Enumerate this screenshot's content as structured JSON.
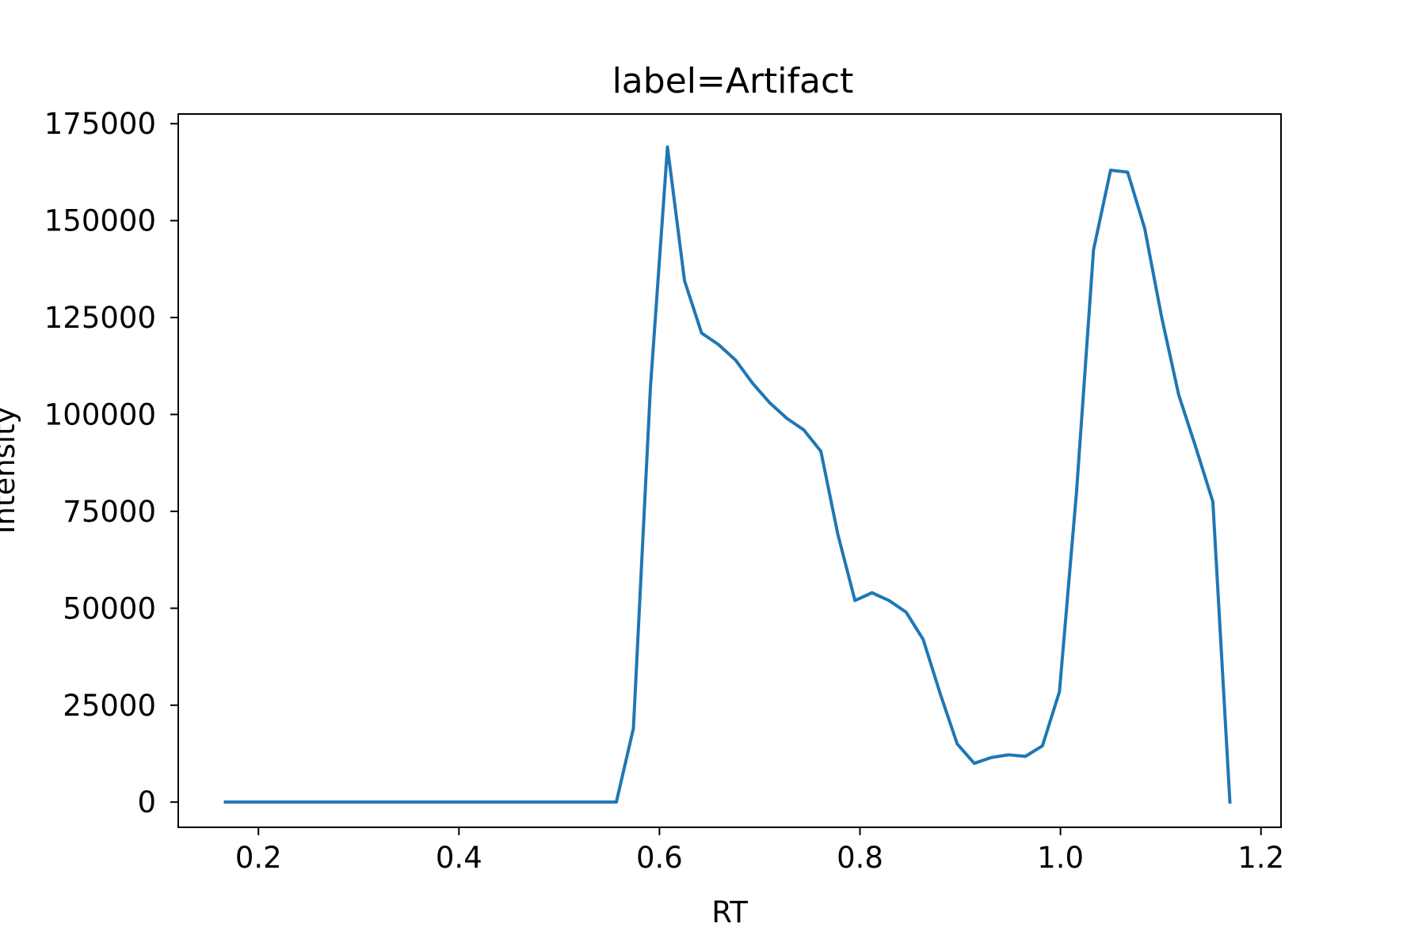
{
  "chart_data": {
    "type": "line",
    "title": "label=Artifact",
    "xlabel": "RT",
    "ylabel": "Intensity",
    "xlim": [
      0.12,
      1.22
    ],
    "ylim": [
      -6500,
      177500
    ],
    "xticks": [
      0.2,
      0.4,
      0.6,
      0.8,
      1.0,
      1.2
    ],
    "xtick_labels": [
      "0.2",
      "0.4",
      "0.6",
      "0.8",
      "1.0",
      "1.2"
    ],
    "yticks": [
      0,
      25000,
      50000,
      75000,
      100000,
      125000,
      150000,
      175000
    ],
    "ytick_labels": [
      "0",
      "25000",
      "50000",
      "75000",
      "100000",
      "125000",
      "150000",
      "175000"
    ],
    "grid": false,
    "line_color": "#1f77b4",
    "series": [
      {
        "x": [
          0.167,
          0.183,
          0.2,
          0.217,
          0.234,
          0.251,
          0.268,
          0.285,
          0.302,
          0.318,
          0.335,
          0.352,
          0.369,
          0.386,
          0.403,
          0.42,
          0.437,
          0.453,
          0.47,
          0.487,
          0.504,
          0.521,
          0.538,
          0.555,
          0.557,
          0.574,
          0.591,
          0.608,
          0.625,
          0.642,
          0.659,
          0.676,
          0.693,
          0.71,
          0.727,
          0.744,
          0.761,
          0.778,
          0.795,
          0.812,
          0.829,
          0.846,
          0.863,
          0.88,
          0.897,
          0.914,
          0.931,
          0.948,
          0.965,
          0.982,
          0.999,
          1.016,
          1.033,
          1.05,
          1.067,
          1.084,
          1.101,
          1.118,
          1.135,
          1.152,
          1.169
        ],
        "y": [
          0,
          0,
          0,
          0,
          0,
          0,
          0,
          0,
          0,
          0,
          0,
          0,
          0,
          0,
          0,
          0,
          0,
          0,
          0,
          0,
          0,
          0,
          0,
          0,
          0,
          19000,
          107000,
          169000,
          134500,
          121000,
          118000,
          114000,
          108000,
          103000,
          99000,
          96000,
          90500,
          69000,
          52000,
          54000,
          52000,
          49000,
          42000,
          28000,
          15000,
          10000,
          11500,
          12200,
          11800,
          14500,
          28500,
          80000,
          142500,
          163000,
          162500,
          148000,
          125000,
          105000,
          91500,
          77500,
          0
        ]
      }
    ]
  }
}
